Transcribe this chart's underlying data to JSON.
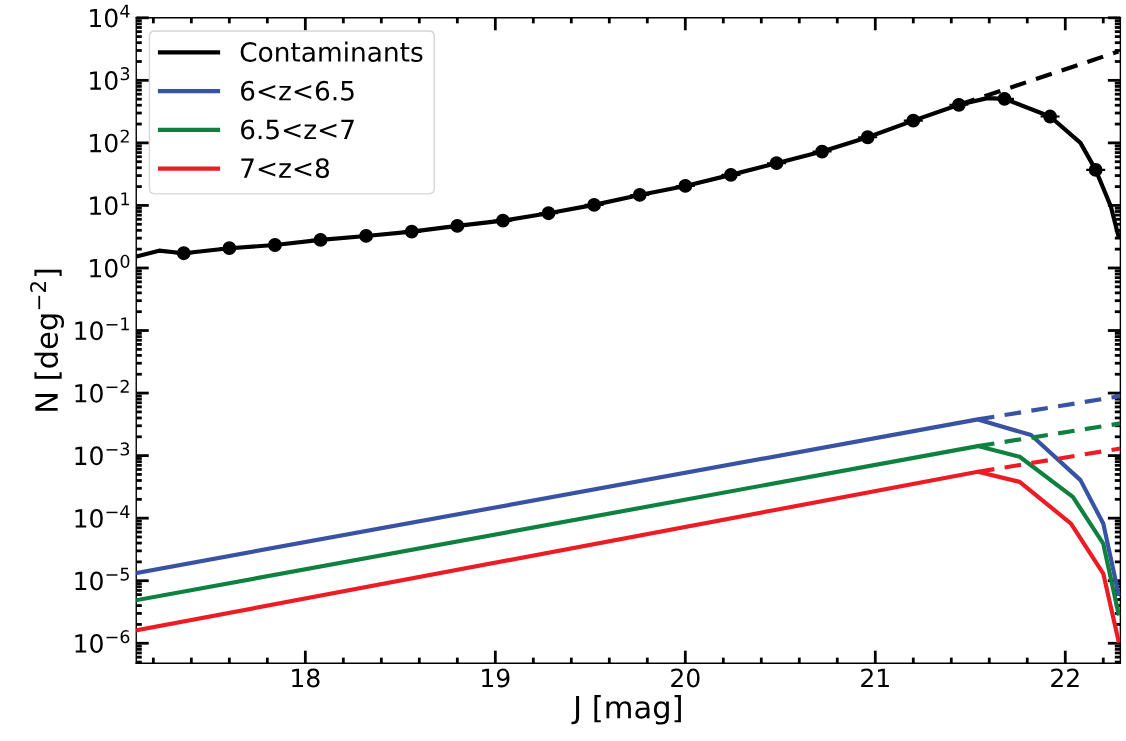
{
  "chart_data": {
    "type": "line",
    "xlabel": "J [mag]",
    "ylabel": "N [deg$^{−2}$]",
    "xlim": [
      17.11,
      22.29
    ],
    "xticks": [
      18,
      19,
      20,
      21,
      22
    ],
    "ylim": [
      4.8e-07,
      10000
    ],
    "log": "y",
    "yticks": [
      {
        "value": 1e-06,
        "label": "10$^{−6}$"
      },
      {
        "value": 1e-05,
        "label": "10$^{−5}$"
      },
      {
        "value": 0.0001,
        "label": "10$^{−4}$"
      },
      {
        "value": 0.001,
        "label": "10$^{−3}$"
      },
      {
        "value": 0.01,
        "label": "10$^{−2}$"
      },
      {
        "value": 0.1,
        "label": "10$^{−1}$"
      },
      {
        "value": 1,
        "label": "10$^{0}$"
      },
      {
        "value": 10,
        "label": "10$^{1}$"
      },
      {
        "value": 100,
        "label": "10$^{2}$"
      },
      {
        "value": 1000,
        "label": "10$^{3}$"
      },
      {
        "value": 10000,
        "label": "10$^{4}$"
      }
    ],
    "grid": false,
    "legend": "top left",
    "series": [
      {
        "name": "Contaminants",
        "color": "#000000",
        "line_style": "solid",
        "x": [
          17.11,
          17.23,
          17.36,
          17.6,
          17.84,
          18.08,
          18.32,
          18.56,
          18.8,
          19.04,
          19.28,
          19.52,
          19.76,
          20.0,
          20.24,
          20.48,
          20.72,
          20.96,
          21.2,
          21.44,
          21.59,
          21.68,
          21.92,
          22.08,
          22.16,
          22.24,
          22.28
        ],
        "values": [
          1.52,
          1.89,
          1.72,
          2.07,
          2.33,
          2.81,
          3.25,
          3.81,
          4.7,
          5.71,
          7.5,
          10.2,
          14.7,
          20.5,
          30.8,
          47.3,
          72.6,
          123,
          227,
          406,
          519,
          506,
          264,
          100,
          37,
          9.6,
          3.2
        ]
      },
      {
        "name": "6<z<6.5",
        "color": "#3953a4",
        "line_style": "solid",
        "x": [
          17.11,
          21.54,
          21.82,
          22.08,
          22.2,
          22.28
        ],
        "values": [
          1.33e-05,
          0.00379,
          0.00213,
          0.000406,
          8.2e-05,
          6.2e-06
        ]
      },
      {
        "name": "6.5<z<7",
        "color": "#0e8040",
        "line_style": "solid",
        "x": [
          17.11,
          21.54,
          21.76,
          22.04,
          22.2,
          22.28
        ],
        "values": [
          4.88e-06,
          0.00142,
          0.00096,
          0.000219,
          3.9e-05,
          3e-06
        ]
      },
      {
        "name": "7<z<8",
        "color": "#ed1c24",
        "line_style": "solid",
        "x": [
          17.11,
          21.54,
          21.76,
          22.03,
          22.2,
          22.28
        ],
        "values": [
          1.61e-06,
          0.000551,
          0.00038,
          8.2e-05,
          1.3e-05,
          1.1e-06
        ]
      },
      {
        "color": "#000000",
        "line_style": "dashed",
        "x": [
          21.44,
          22.28
        ],
        "values": [
          406,
          2890
        ]
      },
      {
        "color": "#3953a4",
        "line_style": "dashed",
        "x": [
          21.54,
          22.29
        ],
        "values": [
          0.00379,
          0.00895
        ]
      },
      {
        "color": "#0e8040",
        "line_style": "dashed",
        "x": [
          21.54,
          22.29
        ],
        "values": [
          0.00142,
          0.00327
        ]
      },
      {
        "color": "#ed1c24",
        "line_style": "dashed",
        "x": [
          21.54,
          22.29
        ],
        "values": [
          0.000551,
          0.0013
        ]
      },
      {
        "type": "scatter",
        "color": "#000000",
        "marker": "circle",
        "x": [
          17.36,
          17.6,
          17.84,
          18.08,
          18.32,
          18.56,
          18.8,
          19.04,
          19.28,
          19.52,
          19.76,
          20.0,
          20.24,
          20.48,
          20.72,
          20.96,
          21.2,
          21.44,
          21.68,
          21.92,
          22.16
        ],
        "values": [
          1.72,
          2.07,
          2.33,
          2.81,
          3.25,
          3.81,
          4.7,
          5.71,
          7.5,
          10.2,
          14.7,
          20.5,
          30.8,
          47.3,
          72.6,
          123,
          227,
          406,
          506,
          264,
          37
        ],
        "xerrors": [
          0.05,
          0.05,
          0.05,
          0.05,
          0.05,
          0.05,
          0.05,
          0.05,
          0.05,
          0.05,
          0.05,
          0.05,
          0.05,
          0.05,
          0.05,
          0.05,
          0.05,
          0.05,
          0.05,
          0.05,
          0.05
        ]
      }
    ]
  }
}
